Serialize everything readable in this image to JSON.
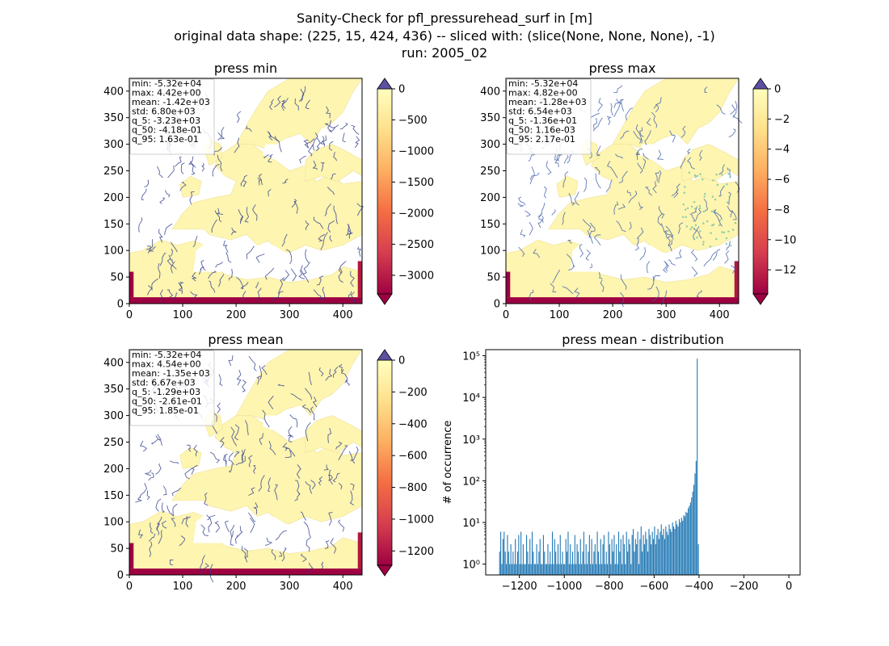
{
  "figure": {
    "title_lines": [
      "Sanity-Check for pfl_pressurehead_surf in [m]",
      "original data shape: (225, 15, 424, 436) -- sliced with: (slice(None, None, None), -1)",
      "run: 2005_02"
    ]
  },
  "chart_data": [
    {
      "type": "heatmap",
      "title": "press min",
      "xticks": [
        0,
        100,
        200,
        300,
        400
      ],
      "yticks": [
        0,
        50,
        100,
        150,
        200,
        250,
        300,
        350,
        400
      ],
      "xlim": [
        0,
        436
      ],
      "ylim": [
        0,
        424
      ],
      "colormap": "Spectral",
      "colorbar": {
        "ticks": [
          0,
          -500,
          -1000,
          -1500,
          -2000,
          -2500,
          -3000
        ],
        "range": [
          -3300,
          0
        ],
        "extend": "both",
        "over_color": "#5e4fa2"
      },
      "stats": [
        "min: -5.32e+04",
        "max: 4.42e+00",
        "mean: -1.42e+03",
        "std: 6.80e+03",
        "q_5: -3.23e+03",
        "q_50: -4.18e-01",
        "q_95: 1.63e-01"
      ]
    },
    {
      "type": "heatmap",
      "title": "press max",
      "xticks": [
        0,
        100,
        200,
        300,
        400
      ],
      "yticks": [
        0,
        50,
        100,
        150,
        200,
        250,
        300,
        350,
        400
      ],
      "xlim": [
        0,
        436
      ],
      "ylim": [
        0,
        424
      ],
      "colormap": "Spectral",
      "colorbar": {
        "ticks": [
          0,
          -2,
          -4,
          -6,
          -8,
          -10,
          -12
        ],
        "range": [
          -13.6,
          0
        ],
        "extend": "both",
        "over_color": "#5e4fa2"
      },
      "stats": [
        "min: -5.32e+04",
        "max: 4.82e+00",
        "mean: -1.28e+03",
        "std: 6.54e+03",
        "q_5: -1.36e+01",
        "q_50: 1.16e-03",
        "q_95: 2.17e-01"
      ]
    },
    {
      "type": "heatmap",
      "title": "press mean",
      "xticks": [
        0,
        100,
        200,
        300,
        400
      ],
      "yticks": [
        0,
        50,
        100,
        150,
        200,
        250,
        300,
        350,
        400
      ],
      "xlim": [
        0,
        436
      ],
      "ylim": [
        0,
        424
      ],
      "colormap": "Spectral",
      "colorbar": {
        "ticks": [
          0,
          -200,
          -400,
          -600,
          -800,
          -1000,
          -1200
        ],
        "range": [
          -1290,
          0
        ],
        "extend": "both",
        "over_color": "#5e4fa2"
      },
      "stats": [
        "min: -5.32e+04",
        "max: 4.54e+00",
        "mean: -1.35e+03",
        "std: 6.67e+03",
        "q_5: -1.29e+03",
        "q_50: -2.61e-01",
        "q_95: 1.85e-01"
      ]
    },
    {
      "type": "bar",
      "title": "press mean - distribution",
      "ylabel": "# of occurrence",
      "xlabel": "",
      "xticks": [
        -1200,
        -1000,
        -800,
        -600,
        -400,
        -200,
        0
      ],
      "yticks": [
        {
          "value": 1,
          "label": "10⁰"
        },
        {
          "value": 10,
          "label": "10¹"
        },
        {
          "value": 100,
          "label": "10²"
        },
        {
          "value": 1000,
          "label": "10³"
        },
        {
          "value": 10000,
          "label": "10⁴"
        },
        {
          "value": 100000,
          "label": "10⁵"
        }
      ],
      "yscale": "log",
      "xlim": [
        -1350,
        50
      ],
      "ylim": [
        0.55,
        140000
      ],
      "color": "#1f77b4",
      "bin_width": 5,
      "bin_start": -1290,
      "counts": [
        2,
        6,
        1,
        4,
        6,
        2,
        1,
        5,
        2,
        1,
        3,
        1,
        2,
        1,
        4,
        1,
        2,
        5,
        1,
        6,
        1,
        3,
        1,
        1,
        5,
        2,
        1,
        4,
        1,
        6,
        2,
        1,
        1,
        3,
        1,
        2,
        4,
        1,
        1,
        5,
        2,
        1,
        1,
        3,
        1,
        2,
        1,
        6,
        1,
        4,
        2,
        1,
        3,
        1,
        5,
        1,
        2,
        1,
        1,
        4,
        2,
        6,
        1,
        3,
        1,
        2,
        1,
        5,
        1,
        3,
        2,
        1,
        4,
        1,
        2,
        6,
        1,
        3,
        1,
        2,
        5,
        1,
        4,
        1,
        2,
        3,
        1,
        6,
        2,
        1,
        4,
        1,
        3,
        5,
        1,
        2,
        1,
        6,
        3,
        1,
        4,
        2,
        5,
        1,
        3,
        1,
        6,
        2,
        4,
        1,
        5,
        3,
        1,
        6,
        2,
        4,
        3,
        1,
        5,
        7,
        2,
        4,
        3,
        6,
        1,
        4,
        8,
        2,
        5,
        3,
        6,
        4,
        2,
        7,
        5,
        3,
        6,
        4,
        8,
        3,
        5,
        7,
        4,
        6,
        9,
        5,
        7,
        4,
        8,
        6,
        5,
        9,
        7,
        6,
        10,
        8,
        7,
        11,
        9,
        8,
        12,
        10,
        13,
        11,
        15,
        14,
        18,
        17,
        22,
        25,
        30,
        40,
        55,
        80,
        150,
        300,
        85000,
        3
      ]
    }
  ]
}
